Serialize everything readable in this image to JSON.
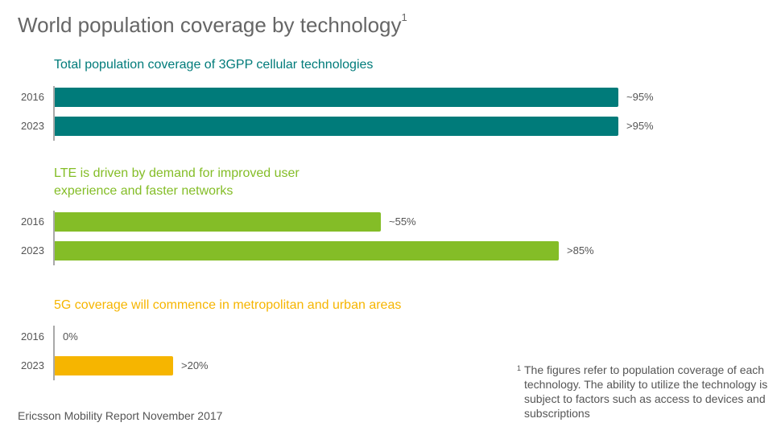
{
  "title": "World population coverage by technology",
  "title_sup": "1",
  "footnote": {
    "mark": "1",
    "text": "The figures refer to population coverage of each technology. The ability to utilize the technology is subject to factors such as access to devices and subscriptions"
  },
  "source": "Ericsson Mobility Report November 2017",
  "chart_data": [
    {
      "type": "bar",
      "orientation": "horizontal",
      "title": "Total population coverage of 3GPP cellular technologies",
      "color": "#007b7a",
      "categories": [
        "2016",
        "2023"
      ],
      "values": [
        95,
        95
      ],
      "data_labels": [
        "~95%",
        ">95%"
      ],
      "xlim": [
        0,
        100
      ]
    },
    {
      "type": "bar",
      "orientation": "horizontal",
      "title": "LTE is driven by demand for improved user experience and faster networks",
      "color": "#84bd27",
      "categories": [
        "2016",
        "2023"
      ],
      "values": [
        55,
        85
      ],
      "data_labels": [
        "~55%",
        ">85%"
      ],
      "xlim": [
        0,
        100
      ]
    },
    {
      "type": "bar",
      "orientation": "horizontal",
      "title": "5G coverage will commence in metropolitan and urban areas",
      "color": "#f6b500",
      "categories": [
        "2016",
        "2023"
      ],
      "values": [
        0,
        20
      ],
      "data_labels": [
        "0%",
        ">20%"
      ],
      "xlim": [
        0,
        100
      ]
    }
  ]
}
